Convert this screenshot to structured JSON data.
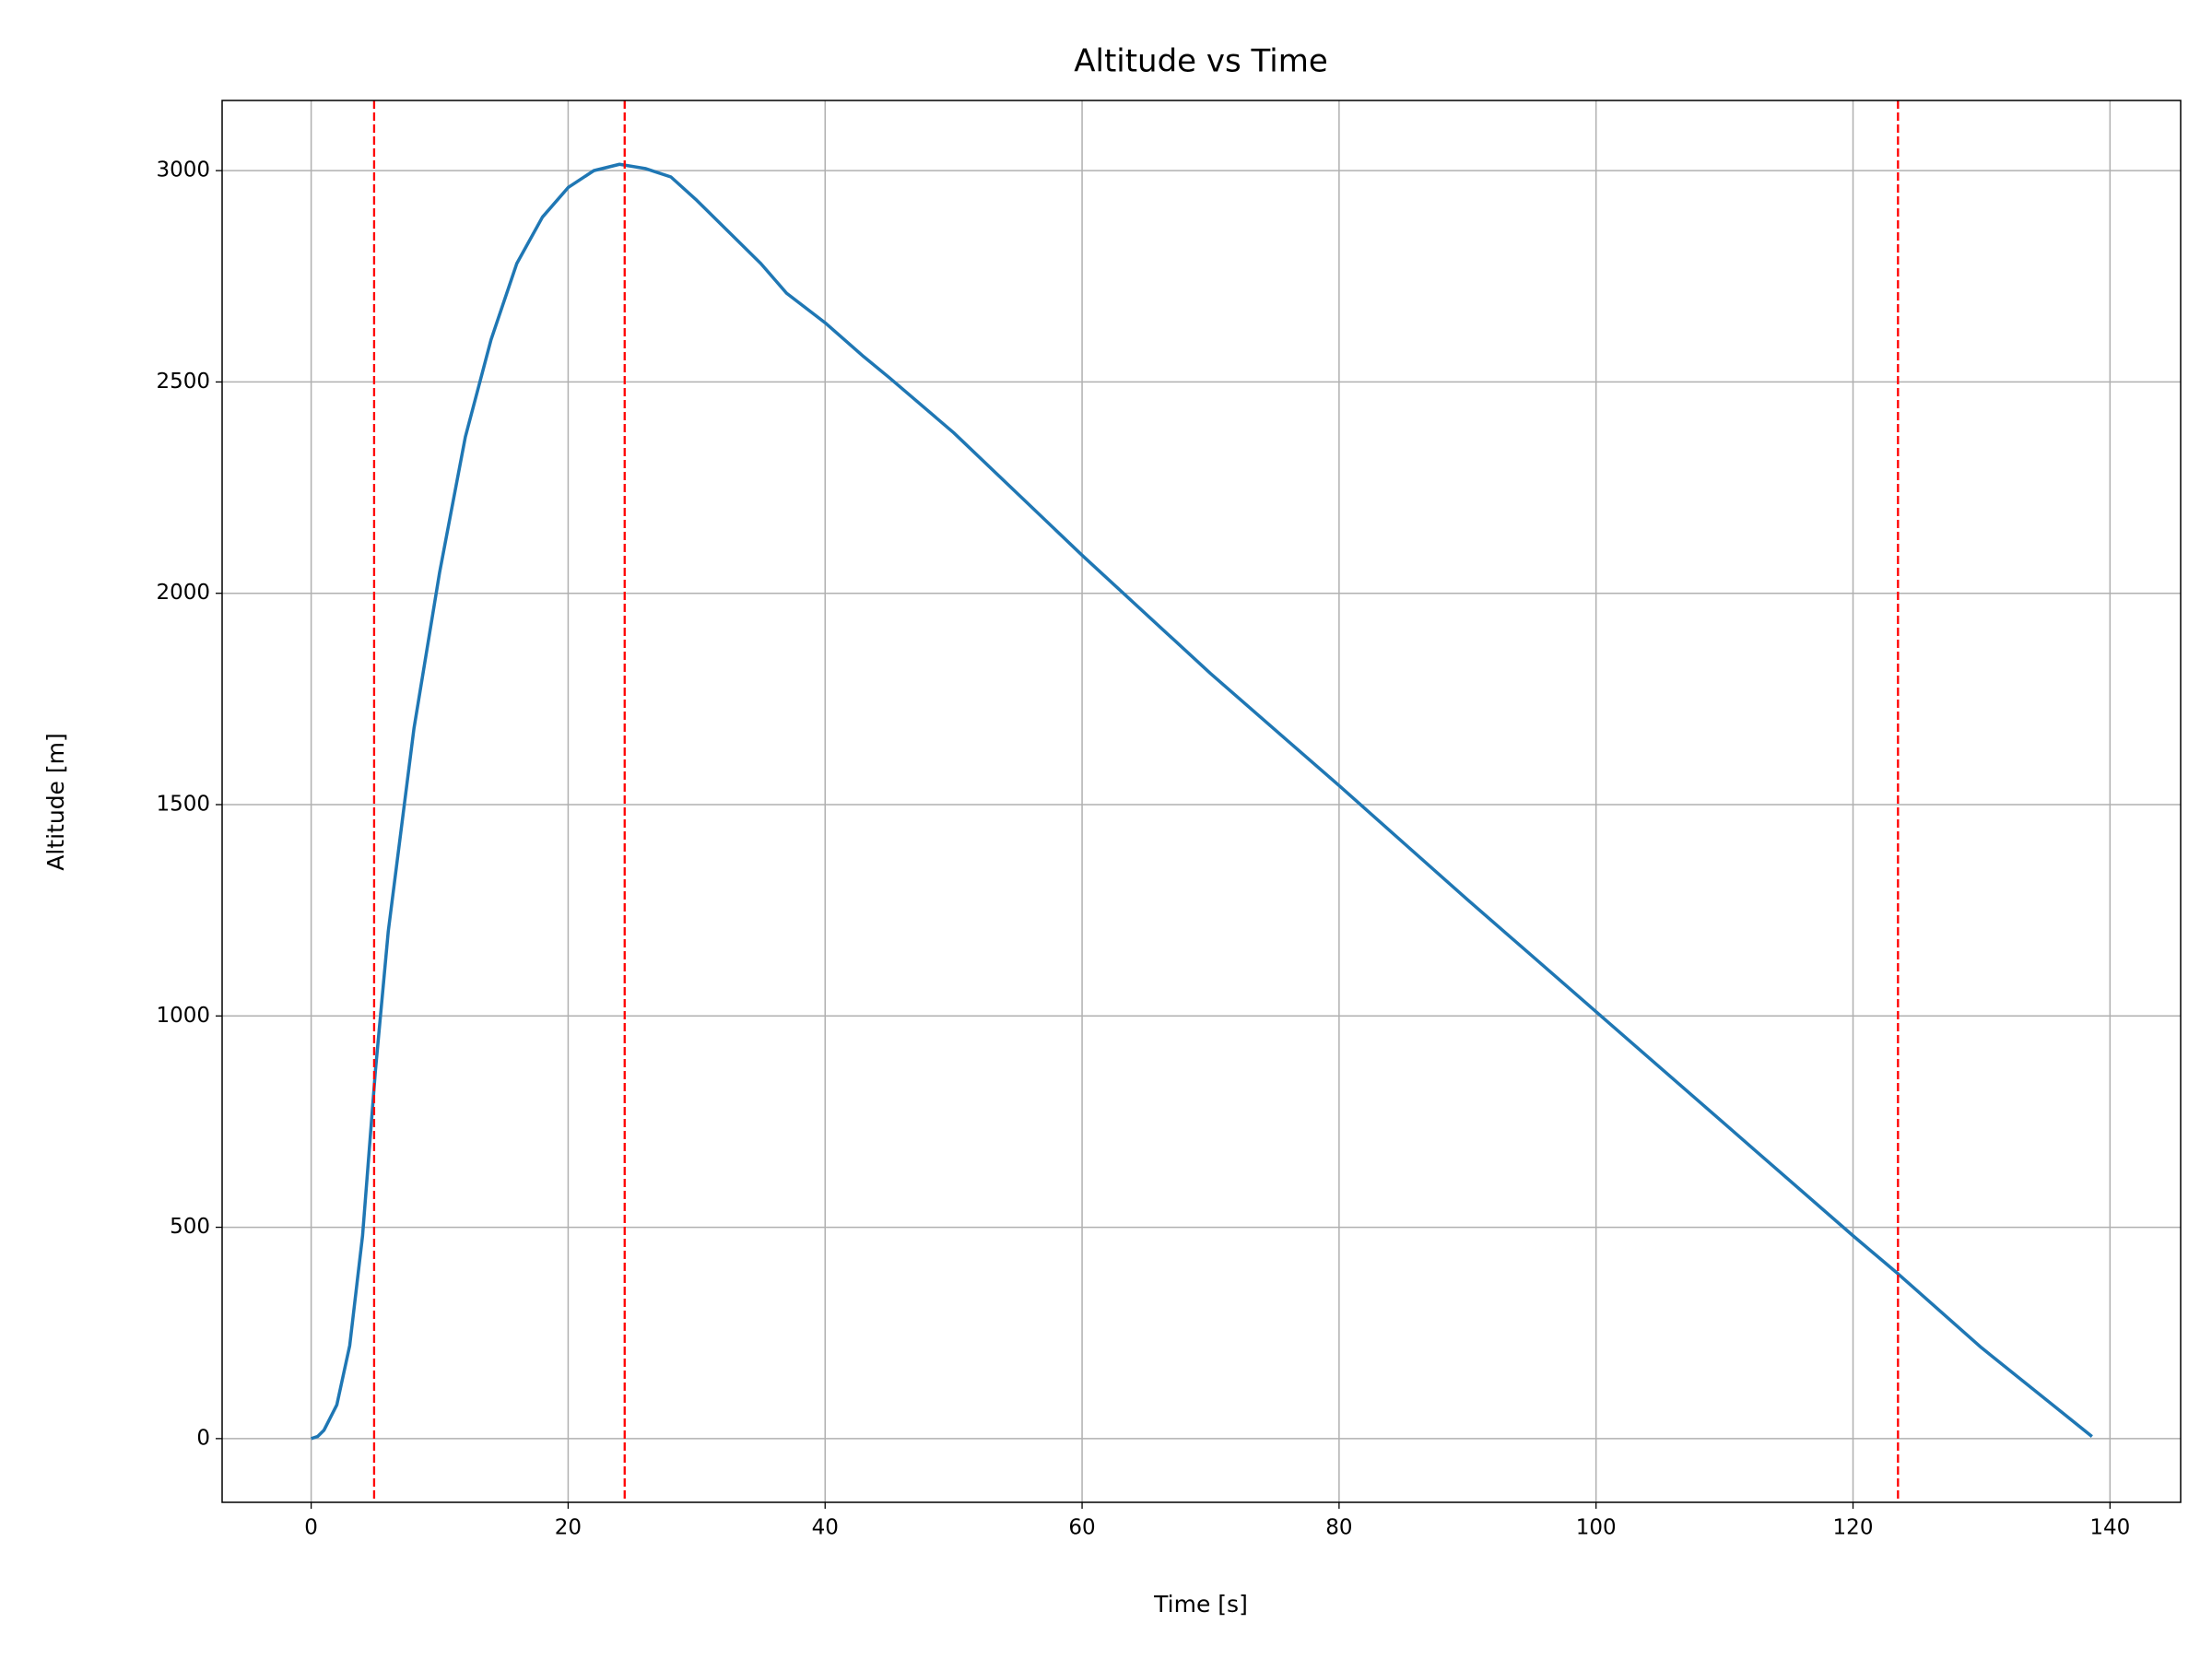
{
  "chart_data": {
    "type": "line",
    "title": "Altitude vs Time",
    "xlabel": "Time [s]",
    "ylabel": "Altitude [m]",
    "x": [
      0,
      0.5,
      1,
      2,
      3,
      4,
      5,
      6,
      8,
      10,
      12,
      14,
      16,
      18,
      20,
      22,
      24,
      26,
      28,
      30,
      35,
      37,
      40,
      43,
      45,
      50,
      60,
      70,
      80,
      90,
      100,
      110,
      120,
      123.5,
      130,
      138.6
    ],
    "values": [
      0,
      5,
      20,
      80,
      220,
      480,
      870,
      1200,
      1680,
      2050,
      2370,
      2600,
      2780,
      2890,
      2960,
      3000,
      3015,
      3005,
      2985,
      2930,
      2780,
      2710,
      2640,
      2560,
      2510,
      2380,
      2090,
      1810,
      1545,
      1275,
      1010,
      745,
      480,
      390,
      215,
      5
    ],
    "color": "#1f77b4",
    "vlines": [
      4.9,
      24.4,
      123.5
    ],
    "vline_color": "#ff0000",
    "xlim": [
      -6.93,
      145.5
    ],
    "xticks": [
      0,
      20,
      40,
      60,
      80,
      100,
      120,
      140
    ],
    "ylim": [
      -150.75,
      3166
    ],
    "yticks": [
      0,
      500,
      1000,
      1500,
      2000,
      2500,
      3000
    ],
    "grid": true
  }
}
